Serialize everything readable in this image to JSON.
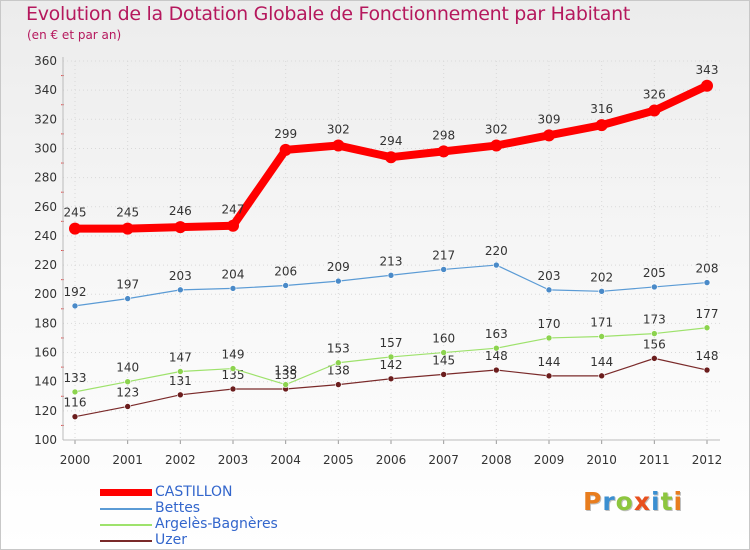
{
  "title": "Evolution de la Dotation Globale de Fonctionnement par Habitant",
  "subtitle": "(en € et par an)",
  "brand": {
    "letters": [
      "P",
      "r",
      "o",
      "x",
      "i",
      "t",
      "i"
    ],
    "colors": [
      "#e87d1e",
      "#3b8fd1",
      "#8dc63f",
      "#e8501e",
      "#3b8fd1",
      "#8dc63f",
      "#e87d1e"
    ]
  },
  "chart_data": {
    "type": "line",
    "x": [
      "2000",
      "2001",
      "2002",
      "2003",
      "2004",
      "2005",
      "2006",
      "2007",
      "2008",
      "2009",
      "2010",
      "2011",
      "2012"
    ],
    "ylim": [
      100,
      360
    ],
    "yticks": [
      "100",
      "120",
      "140",
      "160",
      "180",
      "200",
      "220",
      "240",
      "260",
      "280",
      "300",
      "320",
      "340",
      "360"
    ],
    "grid": true,
    "legend_position": "bottom-left",
    "series": [
      {
        "name": "CASTILLON",
        "values": [
          245,
          245,
          246,
          247,
          299,
          302,
          294,
          298,
          302,
          309,
          316,
          326,
          343
        ],
        "color": "#ff0000",
        "marker": "#ff0000"
      },
      {
        "name": "Bettes",
        "values": [
          192,
          197,
          203,
          204,
          206,
          209,
          213,
          217,
          220,
          203,
          202,
          205,
          208
        ],
        "color": "#5b9bd5",
        "marker": "#4a8ac8"
      },
      {
        "name": "Argelès-Bagnères",
        "values": [
          133,
          140,
          147,
          149,
          138,
          153,
          157,
          160,
          163,
          170,
          171,
          173,
          177
        ],
        "color": "#9ee26c",
        "marker": "#8cd34e"
      },
      {
        "name": "Uzer",
        "values": [
          116,
          123,
          131,
          135,
          135,
          138,
          142,
          145,
          148,
          144,
          144,
          156,
          148
        ],
        "color": "#7a2a2a",
        "marker": "#6b1d1d"
      }
    ]
  }
}
